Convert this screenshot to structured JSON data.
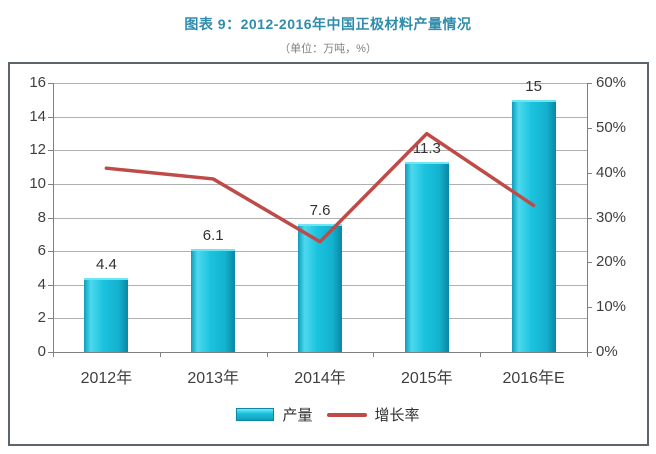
{
  "header": {
    "title": "图表 9：2012-2016年中国正极材料产量情况",
    "subtitle": "（单位：万吨，%）"
  },
  "chart_data": {
    "type": "bar",
    "subtype": "bar+line combo, dual axis",
    "categories": [
      "2012年",
      "2013年",
      "2014年",
      "2015年",
      "2016年E"
    ],
    "series": [
      {
        "name": "产量",
        "type": "bar",
        "axis": "left",
        "values": [
          4.4,
          6.1,
          7.6,
          11.3,
          15
        ],
        "labels": [
          "4.4",
          "6.1",
          "7.6",
          "11.3",
          "15"
        ]
      },
      {
        "name": "增长率",
        "type": "line",
        "axis": "right",
        "values": [
          41.0,
          38.6,
          24.6,
          48.7,
          32.7
        ]
      }
    ],
    "left_axis": {
      "min": 0,
      "max": 16,
      "step": 2,
      "ticks": [
        "0",
        "2",
        "4",
        "6",
        "8",
        "10",
        "12",
        "14",
        "16"
      ]
    },
    "right_axis": {
      "min": 0,
      "max": 60,
      "step": 10,
      "ticks": [
        "0%",
        "10%",
        "20%",
        "30%",
        "40%",
        "50%",
        "60%"
      ]
    },
    "grid": "horizontal only",
    "legend_position": "bottom",
    "title": "图表 9：2012-2016年中国正极材料产量情况",
    "unit_note": "（单位：万吨，%）"
  },
  "colors": {
    "bar": "#1ac2de",
    "bar_edge_dark": "#0a87a3",
    "bar_edge_light": "#6fe4f3",
    "line": "#be4b48",
    "title": "#2f8cab",
    "subtitle": "#7f7f7f",
    "grid": "#b0b0b0",
    "axis": "#808080",
    "text": "#3f3f3f",
    "frame_border": "#5b656e"
  }
}
